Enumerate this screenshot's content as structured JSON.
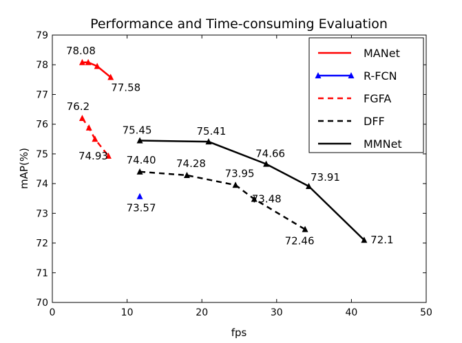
{
  "chart_data": {
    "type": "line",
    "title": "Performance and Time-consuming Evaluation",
    "xlabel": "fps",
    "ylabel": "mAP(%)",
    "xlim": [
      0,
      50
    ],
    "ylim": [
      70,
      79
    ],
    "xticks": [
      0,
      10,
      20,
      30,
      40,
      50
    ],
    "yticks": [
      70,
      71,
      72,
      73,
      74,
      75,
      76,
      77,
      78,
      79
    ],
    "legend_position": "top-right",
    "series": [
      {
        "name": "MANet",
        "color": "#ff0000",
        "dash": "solid",
        "x": [
          4.0,
          4.8,
          6.0,
          7.8
        ],
        "y": [
          78.08,
          78.08,
          77.95,
          77.58
        ],
        "labels": [
          {
            "text": "78.08",
            "x": 4.0,
            "y": 78.08
          },
          {
            "text": "77.58",
            "x": 7.8,
            "y": 77.58
          }
        ]
      },
      {
        "name": "R-FCN",
        "color": "#0000ff",
        "dash": "solid",
        "x": [
          11.7
        ],
        "y": [
          73.57
        ],
        "labels": [
          {
            "text": "73.57",
            "x": 11.7,
            "y": 73.57
          }
        ]
      },
      {
        "name": "FGFA",
        "color": "#ff0000",
        "dash": "dashed",
        "x": [
          4.0,
          4.9,
          5.7,
          7.5
        ],
        "y": [
          76.2,
          75.88,
          75.5,
          74.93
        ],
        "labels": [
          {
            "text": "76.2",
            "x": 4.0,
            "y": 76.2
          },
          {
            "text": "74.93",
            "x": 7.5,
            "y": 74.93
          }
        ]
      },
      {
        "name": "DFF",
        "color": "#000000",
        "dash": "dashed",
        "x": [
          11.7,
          18.0,
          24.5,
          27.0,
          33.8
        ],
        "y": [
          74.4,
          74.28,
          73.95,
          73.48,
          72.46
        ],
        "labels": [
          {
            "text": "74.40",
            "x": 11.7,
            "y": 74.4
          },
          {
            "text": "74.28",
            "x": 18.0,
            "y": 74.28
          },
          {
            "text": "73.95",
            "x": 24.5,
            "y": 73.95
          },
          {
            "text": "73.48",
            "x": 27.0,
            "y": 73.48
          },
          {
            "text": "72.46",
            "x": 33.8,
            "y": 72.46
          }
        ]
      },
      {
        "name": "MMNet",
        "color": "#000000",
        "dash": "solid",
        "x": [
          11.7,
          20.9,
          28.6,
          34.3,
          41.7
        ],
        "y": [
          75.45,
          75.41,
          74.66,
          73.91,
          72.1
        ],
        "labels": [
          {
            "text": "75.45",
            "x": 11.7,
            "y": 75.45
          },
          {
            "text": "75.41",
            "x": 20.9,
            "y": 75.41
          },
          {
            "text": "74.66",
            "x": 28.6,
            "y": 74.66
          },
          {
            "text": "73.91",
            "x": 34.3,
            "y": 73.91
          },
          {
            "text": "72.1",
            "x": 41.7,
            "y": 72.1
          }
        ]
      }
    ]
  }
}
